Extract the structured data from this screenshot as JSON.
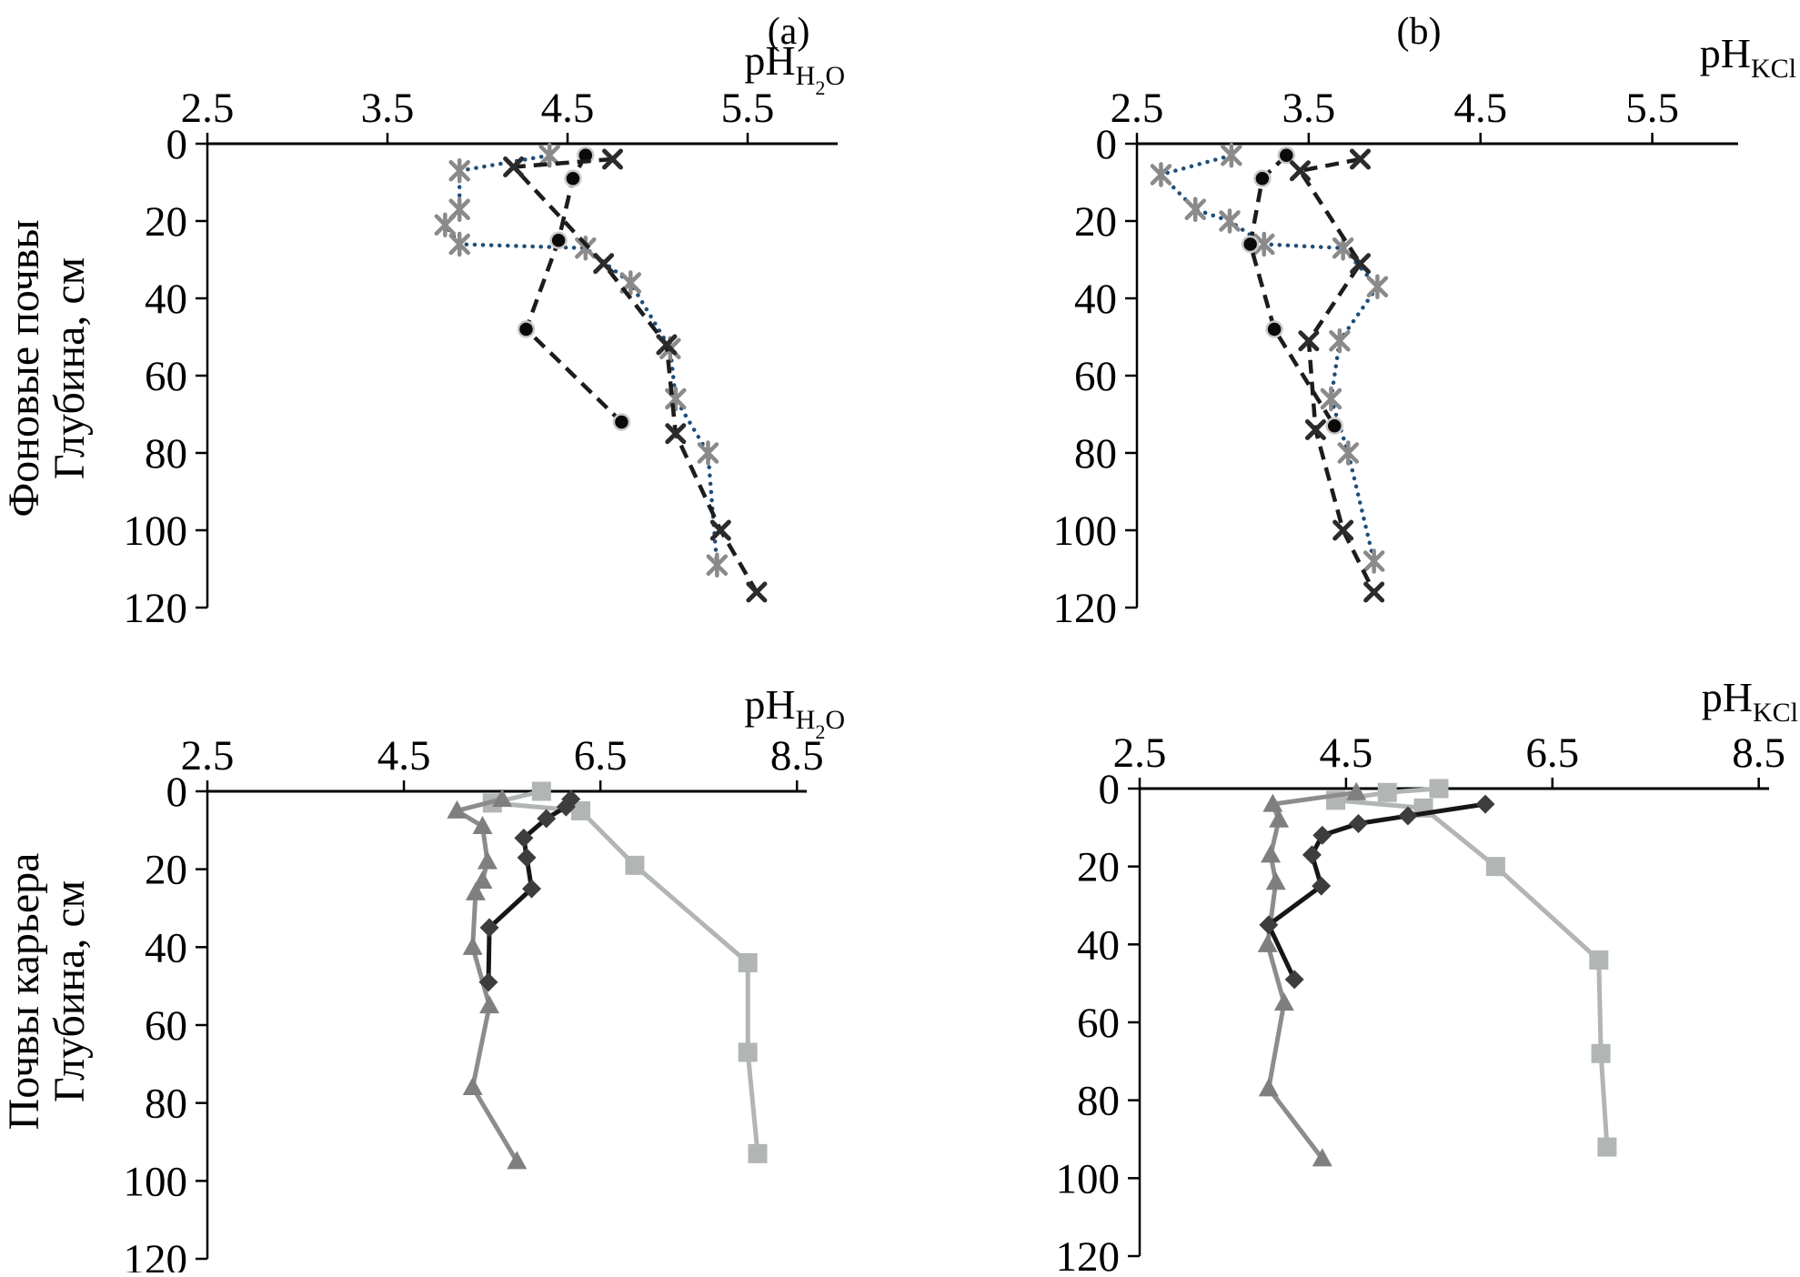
{
  "figure": {
    "description": "Soil pH depth profiles: background soils (top row) and quarry soils (bottom row), measured in H2O (left column) and KCl (right column)",
    "panel_letters": [
      "(a)",
      "(b)"
    ],
    "row_labels": [
      {
        "name": "background-soils",
        "lines": [
          "Фоновые почвы",
          "Глубина, см"
        ]
      },
      {
        "name": "quarry-soils",
        "lines": [
          "Почвы карьера",
          "Глубина, см"
        ]
      }
    ]
  },
  "chart_data": [
    {
      "id": "a",
      "type": "line",
      "panel_letter": "(a)",
      "x_title": {
        "base": "pH",
        "parts": [
          {
            "text": "H"
          },
          {
            "text": "2",
            "sub": true
          },
          {
            "text": "O"
          }
        ]
      },
      "x_ticks": [
        {
          "v": 2.5,
          "label": "2.5"
        },
        {
          "v": 3.5,
          "label": "3.5"
        },
        {
          "v": 4.5,
          "label": "4.5"
        },
        {
          "v": 5.5,
          "label": "5.5"
        }
      ],
      "y_ticks": [
        {
          "v": 0,
          "label": "0"
        },
        {
          "v": 20,
          "label": "20"
        },
        {
          "v": 40,
          "label": "40"
        },
        {
          "v": 60,
          "label": "60"
        },
        {
          "v": 80,
          "label": "80"
        },
        {
          "v": 100,
          "label": "100"
        },
        {
          "v": 120,
          "label": "120"
        }
      ],
      "x_range": [
        2.5,
        6.0
      ],
      "y_range": [
        0,
        120
      ],
      "x_axis_position": "top",
      "grid": false,
      "legend": "none",
      "series": [
        {
          "name": "background-profile-3-asterisk",
          "marker": "asterisk",
          "line": "dotted",
          "marker_color": "#8a8a8a",
          "line_color": "#1f4e79",
          "points": [
            [
              4.4,
              3
            ],
            [
              3.9,
              7
            ],
            [
              3.9,
              17
            ],
            [
              3.82,
              21
            ],
            [
              3.9,
              26
            ],
            [
              4.6,
              27
            ],
            [
              4.85,
              36
            ],
            [
              5.07,
              53
            ],
            [
              5.1,
              66
            ],
            [
              5.28,
              80
            ],
            [
              5.33,
              109
            ]
          ]
        },
        {
          "name": "background-profile-1-circle",
          "marker": "circle",
          "line": "dashed",
          "marker_color": "#0a0a0a",
          "line_color": "#1c1c1c",
          "points": [
            [
              4.6,
              3
            ],
            [
              4.53,
              9
            ],
            [
              4.45,
              25
            ],
            [
              4.27,
              48
            ],
            [
              4.8,
              72
            ]
          ]
        },
        {
          "name": "background-profile-2-x",
          "marker": "x",
          "line": "dashed",
          "marker_color": "#2b2b2b",
          "line_color": "#1c1c1c",
          "points": [
            [
              4.75,
              4
            ],
            [
              4.2,
              6
            ],
            [
              4.7,
              31
            ],
            [
              5.05,
              52
            ],
            [
              5.1,
              75
            ],
            [
              5.35,
              100
            ],
            [
              5.55,
              116
            ]
          ]
        }
      ]
    },
    {
      "id": "b",
      "type": "line",
      "panel_letter": "(b)",
      "x_title": {
        "base": "pH",
        "parts": [
          {
            "text": "KCl"
          }
        ]
      },
      "x_ticks": [
        {
          "v": 2.5,
          "label": "2.5"
        },
        {
          "v": 3.5,
          "label": "3.5"
        },
        {
          "v": 4.5,
          "label": "4.5"
        },
        {
          "v": 5.5,
          "label": "5.5"
        }
      ],
      "y_ticks": [
        {
          "v": 0,
          "label": "0"
        },
        {
          "v": 20,
          "label": "20"
        },
        {
          "v": 40,
          "label": "40"
        },
        {
          "v": 60,
          "label": "60"
        },
        {
          "v": 80,
          "label": "80"
        },
        {
          "v": 100,
          "label": "100"
        },
        {
          "v": 120,
          "label": "120"
        }
      ],
      "x_range": [
        2.5,
        6.0
      ],
      "y_range": [
        0,
        120
      ],
      "x_axis_position": "top",
      "grid": false,
      "legend": "none",
      "series": [
        {
          "name": "background-profile-3-asterisk",
          "marker": "asterisk",
          "line": "dotted",
          "marker_color": "#8a8a8a",
          "line_color": "#1f4e79",
          "points": [
            [
              3.05,
              3
            ],
            [
              2.64,
              8
            ],
            [
              2.84,
              17
            ],
            [
              3.04,
              20
            ],
            [
              3.24,
              26
            ],
            [
              3.7,
              27
            ],
            [
              3.9,
              37
            ],
            [
              3.68,
              51
            ],
            [
              3.63,
              66
            ],
            [
              3.73,
              80
            ],
            [
              3.88,
              108
            ]
          ]
        },
        {
          "name": "background-profile-1-circle",
          "marker": "circle",
          "line": "dashed",
          "marker_color": "#0a0a0a",
          "line_color": "#1c1c1c",
          "points": [
            [
              3.37,
              3
            ],
            [
              3.23,
              9
            ],
            [
              3.16,
              26
            ],
            [
              3.3,
              48
            ],
            [
              3.65,
              73
            ]
          ]
        },
        {
          "name": "background-profile-2-x",
          "marker": "x",
          "line": "dashed",
          "marker_color": "#2b2b2b",
          "line_color": "#1c1c1c",
          "points": [
            [
              3.8,
              4
            ],
            [
              3.45,
              7
            ],
            [
              3.8,
              31
            ],
            [
              3.5,
              51
            ],
            [
              3.54,
              74
            ],
            [
              3.7,
              100
            ],
            [
              3.88,
              116
            ]
          ]
        }
      ]
    },
    {
      "id": "c",
      "type": "line",
      "panel_letter": "",
      "x_title": {
        "base": "pH",
        "parts": [
          {
            "text": "H"
          },
          {
            "text": "2",
            "sub": true
          },
          {
            "text": "O"
          }
        ]
      },
      "x_ticks": [
        {
          "v": 2.5,
          "label": "2.5"
        },
        {
          "v": 4.5,
          "label": "4.5"
        },
        {
          "v": 6.5,
          "label": "6.5"
        },
        {
          "v": 8.5,
          "label": "8.5"
        }
      ],
      "y_ticks": [
        {
          "v": 0,
          "label": "0"
        },
        {
          "v": 20,
          "label": "20"
        },
        {
          "v": 40,
          "label": "40"
        },
        {
          "v": 60,
          "label": "60"
        },
        {
          "v": 80,
          "label": "80"
        },
        {
          "v": 100,
          "label": "100"
        },
        {
          "v": 120,
          "label": "120"
        }
      ],
      "x_range": [
        2.5,
        8.6
      ],
      "y_range": [
        0,
        120
      ],
      "x_axis_position": "top",
      "grid": false,
      "legend": "none",
      "series": [
        {
          "name": "quarry-profile-3-square",
          "marker": "square",
          "line": "solid",
          "marker_color": "#b1b5b4",
          "line_color": "#b1b5b4",
          "points": [
            [
              5.9,
              0
            ],
            [
              5.4,
              3
            ],
            [
              6.3,
              5
            ],
            [
              6.85,
              19
            ],
            [
              8.0,
              44
            ],
            [
              8.0,
              67
            ],
            [
              8.1,
              93
            ]
          ]
        },
        {
          "name": "quarry-profile-1-triangle",
          "marker": "triangle",
          "line": "solid",
          "marker_color": "#7f7f7f",
          "line_color": "#8c8c8c",
          "points": [
            [
              5.5,
              2
            ],
            [
              5.04,
              5
            ],
            [
              5.3,
              9
            ],
            [
              5.35,
              18
            ],
            [
              5.3,
              23
            ],
            [
              5.23,
              26
            ],
            [
              5.2,
              40
            ],
            [
              5.37,
              55
            ],
            [
              5.2,
              76
            ],
            [
              5.65,
              95
            ]
          ]
        },
        {
          "name": "quarry-profile-2-diamond",
          "marker": "diamond",
          "line": "solid",
          "marker_color": "#3d3d3d",
          "line_color": "#161616",
          "points": [
            [
              6.2,
              2
            ],
            [
              6.15,
              4
            ],
            [
              5.95,
              7
            ],
            [
              5.72,
              12
            ],
            [
              5.75,
              17
            ],
            [
              5.8,
              25
            ],
            [
              5.37,
              35
            ],
            [
              5.36,
              49
            ]
          ]
        }
      ]
    },
    {
      "id": "d",
      "type": "line",
      "panel_letter": "",
      "x_title": {
        "base": "pH",
        "parts": [
          {
            "text": "KCl"
          }
        ]
      },
      "x_ticks": [
        {
          "v": 2.5,
          "label": "2.5"
        },
        {
          "v": 4.5,
          "label": "4.5"
        },
        {
          "v": 6.5,
          "label": "6.5"
        },
        {
          "v": 8.5,
          "label": "8.5"
        }
      ],
      "y_ticks": [
        {
          "v": 0,
          "label": "0"
        },
        {
          "v": 20,
          "label": "20"
        },
        {
          "v": 40,
          "label": "40"
        },
        {
          "v": 60,
          "label": "60"
        },
        {
          "v": 80,
          "label": "80"
        },
        {
          "v": 100,
          "label": "100"
        },
        {
          "v": 120,
          "label": "120"
        }
      ],
      "x_range": [
        2.5,
        8.6
      ],
      "y_range": [
        0,
        120
      ],
      "x_axis_position": "top",
      "grid": false,
      "legend": "none",
      "series": [
        {
          "name": "quarry-profile-3-square",
          "marker": "square",
          "line": "solid",
          "marker_color": "#b1b5b4",
          "line_color": "#b1b5b4",
          "points": [
            [
              5.4,
              0
            ],
            [
              4.9,
              1
            ],
            [
              4.4,
              3
            ],
            [
              5.25,
              5
            ],
            [
              5.95,
              20
            ],
            [
              6.95,
              44
            ],
            [
              6.97,
              68
            ],
            [
              7.03,
              92
            ]
          ]
        },
        {
          "name": "quarry-profile-1-triangle",
          "marker": "triangle",
          "line": "solid",
          "marker_color": "#7f7f7f",
          "line_color": "#8c8c8c",
          "points": [
            [
              4.6,
              1
            ],
            [
              3.79,
              4
            ],
            [
              3.85,
              8
            ],
            [
              3.77,
              17
            ],
            [
              3.82,
              24
            ],
            [
              3.74,
              40
            ],
            [
              3.9,
              55
            ],
            [
              3.75,
              77
            ],
            [
              4.27,
              95
            ]
          ]
        },
        {
          "name": "quarry-profile-2-diamond",
          "marker": "diamond",
          "line": "solid",
          "marker_color": "#3d3d3d",
          "line_color": "#161616",
          "points": [
            [
              5.85,
              4
            ],
            [
              5.1,
              7
            ],
            [
              4.62,
              9
            ],
            [
              4.27,
              12
            ],
            [
              4.17,
              17
            ],
            [
              4.26,
              25
            ],
            [
              3.75,
              35
            ],
            [
              4.0,
              49
            ]
          ]
        }
      ]
    }
  ]
}
